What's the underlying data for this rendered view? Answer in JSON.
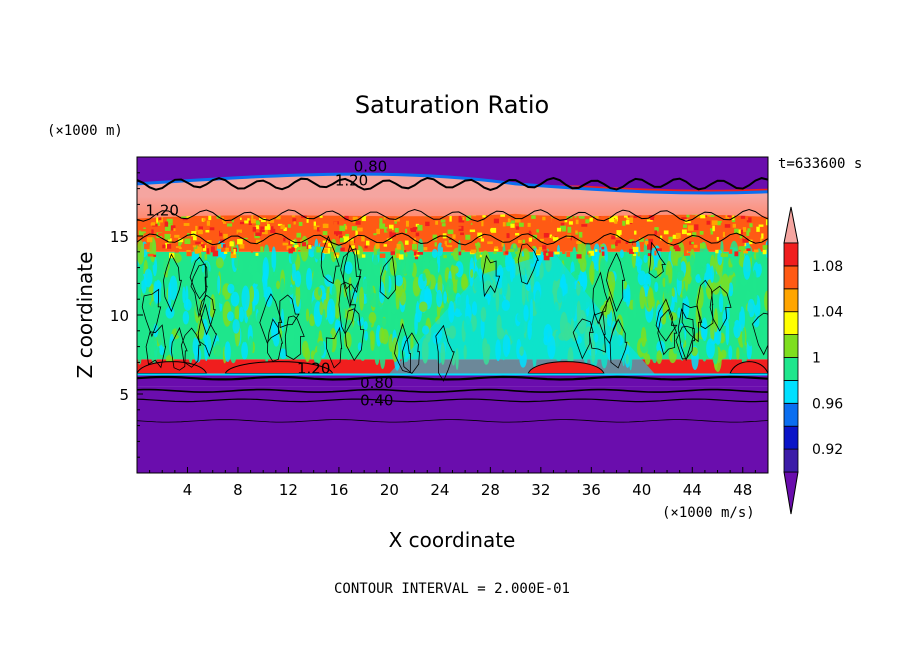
{
  "chart_data": {
    "type": "heatmap",
    "title": "Saturation Ratio",
    "xlabel": "X coordinate",
    "ylabel": "Z coordinate",
    "x_unit": "(×1000 m/s)",
    "y_unit": "(×1000 m)",
    "time_label": "t=633600 s",
    "contour_interval_label": "CONTOUR INTERVAL = 2.000E-01",
    "xlim": [
      0,
      50
    ],
    "ylim": [
      0,
      20
    ],
    "x_ticks": [
      4,
      8,
      12,
      16,
      20,
      24,
      28,
      32,
      36,
      40,
      44,
      48
    ],
    "y_ticks": [
      5,
      10,
      15
    ],
    "colorbar": {
      "levels": [
        0.92,
        0.94,
        0.96,
        0.98,
        1.0,
        1.02,
        1.04,
        1.06,
        1.08,
        1.1
      ],
      "colors": [
        "#6a0dad",
        "#3c1ca8",
        "#0a14c8",
        "#0a6ef0",
        "#00e0ff",
        "#1ee68c",
        "#7ede1e",
        "#ffff00",
        "#ffa500",
        "#ff5a14",
        "#f01e1e",
        "#f5a5a0"
      ],
      "tick_labels": [
        "0.92",
        "0.96",
        "1",
        "1.04",
        "1.08"
      ]
    },
    "contour_labels": [
      "0.80",
      "1.20",
      "1.20",
      "1.20",
      "0.80",
      "0.40"
    ],
    "regions": [
      {
        "z": [
          0,
          5.5
        ],
        "value": 0.5
      },
      {
        "z": [
          5.5,
          6.2
        ],
        "value": 0.85
      },
      {
        "z": [
          6.2,
          7.2
        ],
        "value": 1.2
      },
      {
        "z": [
          7.2,
          14.0
        ],
        "value": 1.0
      },
      {
        "z": [
          14.0,
          16.5
        ],
        "value": 1.08
      },
      {
        "z": [
          16.5,
          18.2
        ],
        "value": 1.2
      },
      {
        "z": [
          18.2,
          20
        ],
        "value": 0.7
      }
    ]
  }
}
